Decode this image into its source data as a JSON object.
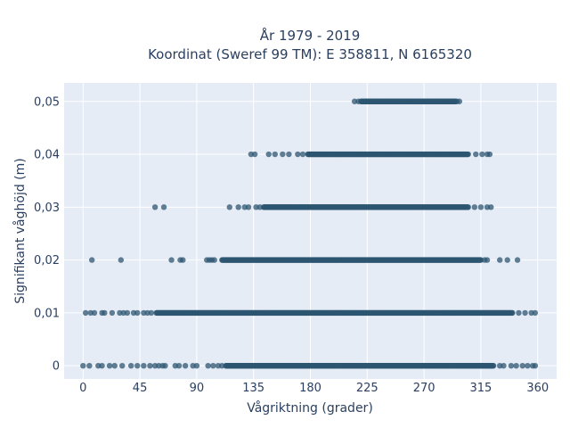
{
  "chart_data": {
    "type": "scatter",
    "title_line1": "År 1979 - 2019",
    "title_line2": "Koordinat (Sweref 99 TM): E 358811, N 6165320",
    "xlabel": "Vågriktning (grader)",
    "ylabel": "Signifikant våghöjd (m)",
    "xlim": [
      -15,
      375
    ],
    "ylim": [
      -0.0025,
      0.0535
    ],
    "x_ticks": [
      0,
      45,
      90,
      135,
      180,
      225,
      270,
      315,
      360
    ],
    "x_tick_labels": [
      "0",
      "45",
      "90",
      "135",
      "180",
      "225",
      "270",
      "315",
      "360"
    ],
    "y_ticks": [
      0,
      0.01,
      0.02,
      0.03,
      0.04,
      0.05
    ],
    "y_tick_labels": [
      "0",
      "0,01",
      "0,02",
      "0,03",
      "0,04",
      "0,05"
    ],
    "grid": true,
    "colors": {
      "plot_bg": "#e5ecf6",
      "grid": "#ffffff",
      "marker": "#2e5672",
      "text": "#2a3f5f"
    },
    "series": [
      {
        "values_at_y": [
          {
            "y": 0.05,
            "x_dense": [
              220,
              295
            ],
            "x_sparse": [
              215,
              218,
              296,
              298
            ]
          },
          {
            "y": 0.04,
            "x_dense": [
              178,
              305
            ],
            "x_sparse": [
              133,
              136,
              147,
              152,
              158,
              163,
              170,
              174,
              311,
              316,
              320,
              322
            ]
          },
          {
            "y": 0.03,
            "x_dense": [
              143,
              305
            ],
            "x_sparse": [
              57,
              64,
              116,
              123,
              128,
              131,
              137,
              140,
              310,
              315,
              320,
              323
            ]
          },
          {
            "y": 0.02,
            "x_dense": [
              110,
              315
            ],
            "x_sparse": [
              7,
              30,
              70,
              77,
              79,
              98,
              100,
              102,
              104,
              318,
              320,
              330,
              336,
              344
            ]
          },
          {
            "y": 0.01,
            "x_dense": [
              58,
              340
            ],
            "x_sparse": [
              2,
              6,
              9,
              15,
              17,
              23,
              29,
              32,
              35,
              40,
              43,
              48,
              51,
              54,
              345,
              350,
              355,
              358
            ]
          },
          {
            "y": 0,
            "x_dense": [
              113,
              325
            ],
            "x_sparse": [
              0,
              5,
              12,
              15,
              21,
              25,
              31,
              38,
              43,
              48,
              53,
              57,
              60,
              63,
              65,
              73,
              76,
              81,
              87,
              90,
              99,
              103,
              107,
              110,
              330,
              333,
              339,
              343,
              348,
              352,
              356,
              358
            ]
          }
        ]
      }
    ]
  }
}
